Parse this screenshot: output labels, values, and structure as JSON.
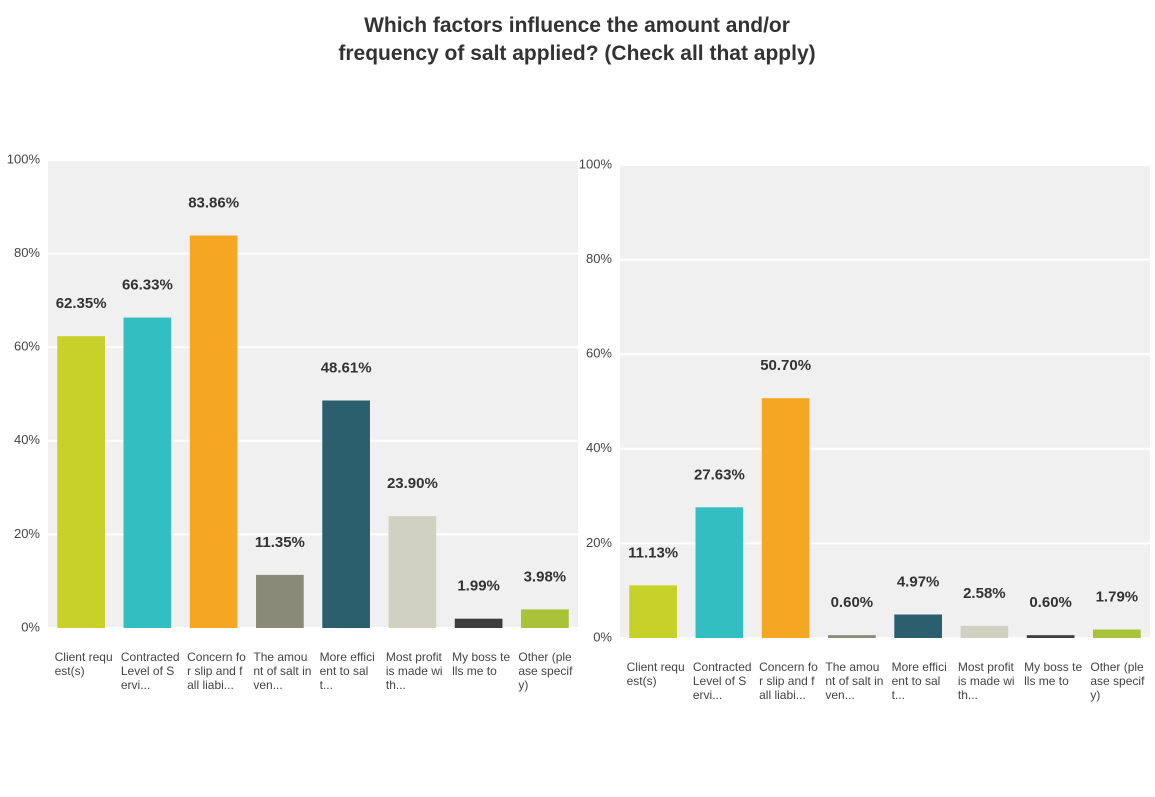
{
  "title": "Which factors influence the amount and/or frequency of salt applied? (Check all that apply)",
  "chart_data": [
    {
      "type": "bar",
      "categories": [
        "Client request(s)",
        "Contracted Level of Servi...",
        "Concern for slip and fall liabi...",
        "The amount of salt inven...",
        "More efficient to salt...",
        "Most profit is made with...",
        "My boss tells me to",
        "Other (please specify)"
      ],
      "values": [
        62.35,
        66.33,
        83.86,
        11.35,
        48.61,
        23.9,
        1.99,
        3.98
      ],
      "value_labels": [
        "62.35%",
        "66.33%",
        "83.86%",
        "11.35%",
        "48.61%",
        "23.90%",
        "1.99%",
        "3.98%"
      ],
      "colors": [
        "#c8d02a",
        "#33bfc1",
        "#f5a623",
        "#8a8a78",
        "#2c5f6e",
        "#d1d1c1",
        "#3d3d3d",
        "#a8c23a"
      ],
      "ylim": [
        0,
        100
      ],
      "yticks": [
        {
          "value": 0,
          "label": "0%"
        },
        {
          "value": 20,
          "label": "20%"
        },
        {
          "value": 40,
          "label": "40%"
        },
        {
          "value": 60,
          "label": "60%"
        },
        {
          "value": 80,
          "label": "80%"
        },
        {
          "value": 100,
          "label": "100%"
        }
      ],
      "grid": true
    },
    {
      "type": "bar",
      "categories": [
        "Client request(s)",
        "Contracted Level of Servi...",
        "Concern for slip and fall liabi...",
        "The amount of salt inven...",
        "More efficient to salt...",
        "Most profit is made with...",
        "My boss tells me to",
        "Other (please specify)"
      ],
      "values": [
        11.13,
        27.63,
        50.7,
        0.6,
        4.97,
        2.58,
        0.6,
        1.79
      ],
      "value_labels": [
        "11.13%",
        "27.63%",
        "50.70%",
        "0.60%",
        "4.97%",
        "2.58%",
        "0.60%",
        "1.79%"
      ],
      "colors": [
        "#c8d02a",
        "#33bfc1",
        "#f5a623",
        "#8a8a78",
        "#2c5f6e",
        "#d1d1c1",
        "#3d3d3d",
        "#a8c23a"
      ],
      "ylim": [
        0,
        100
      ],
      "yticks": [
        {
          "value": 0,
          "label": "0%"
        },
        {
          "value": 20,
          "label": "20%"
        },
        {
          "value": 40,
          "label": "40%"
        },
        {
          "value": 60,
          "label": "60%"
        },
        {
          "value": 80,
          "label": "80%"
        },
        {
          "value": 100,
          "label": "100%"
        }
      ],
      "grid": true
    }
  ]
}
